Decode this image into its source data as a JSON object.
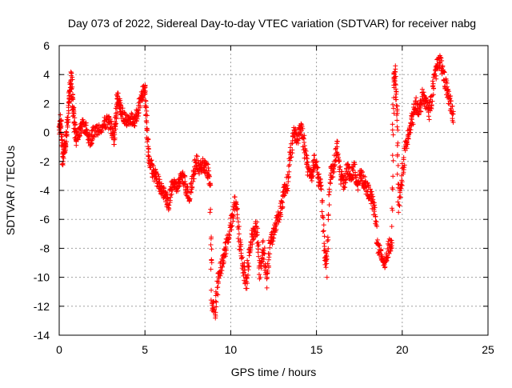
{
  "chart_data": {
    "type": "scatter",
    "title": "Day 073 of 2022, Sidereal Day-to-day VTEC variation (SDTVAR) for receiver nabg",
    "xlabel": "GPS time / hours",
    "ylabel": "SDTVAR / TECUs",
    "xlim": [
      0,
      25
    ],
    "ylim": [
      -14,
      6
    ],
    "xticks": [
      0,
      5,
      10,
      15,
      20,
      25
    ],
    "yticks": [
      -14,
      -12,
      -10,
      -8,
      -6,
      -4,
      -2,
      0,
      2,
      4,
      6
    ],
    "grid": true,
    "marker": "+",
    "color": "#ff0000",
    "series": [
      {
        "name": "SDTVAR",
        "trend": [
          [
            0.0,
            0.0
          ],
          [
            0.1,
            1.0
          ],
          [
            0.2,
            -1.8
          ],
          [
            0.3,
            -1.0
          ],
          [
            0.4,
            -0.5
          ],
          [
            0.5,
            1.0
          ],
          [
            0.6,
            2.5
          ],
          [
            0.7,
            3.8
          ],
          [
            0.8,
            2.0
          ],
          [
            0.9,
            0.5
          ],
          [
            1.0,
            -0.5
          ],
          [
            1.2,
            0.0
          ],
          [
            1.4,
            0.5
          ],
          [
            1.6,
            0.2
          ],
          [
            1.8,
            -0.5
          ],
          [
            2.0,
            0.0
          ],
          [
            2.3,
            0.3
          ],
          [
            2.6,
            0.5
          ],
          [
            2.8,
            0.8
          ],
          [
            3.0,
            0.5
          ],
          [
            3.2,
            -0.5
          ],
          [
            3.3,
            1.0
          ],
          [
            3.4,
            2.5
          ],
          [
            3.5,
            2.2
          ],
          [
            3.6,
            1.5
          ],
          [
            3.8,
            1.0
          ],
          [
            4.0,
            0.8
          ],
          [
            4.2,
            1.0
          ],
          [
            4.4,
            0.5
          ],
          [
            4.6,
            1.5
          ],
          [
            4.8,
            2.5
          ],
          [
            5.0,
            3.0
          ],
          [
            5.1,
            1.0
          ],
          [
            5.2,
            -1.5
          ],
          [
            5.4,
            -2.5
          ],
          [
            5.6,
            -3.0
          ],
          [
            5.8,
            -3.5
          ],
          [
            6.0,
            -4.0
          ],
          [
            6.2,
            -4.5
          ],
          [
            6.4,
            -5.0
          ],
          [
            6.6,
            -3.5
          ],
          [
            6.8,
            -3.8
          ],
          [
            7.0,
            -3.5
          ],
          [
            7.2,
            -3.0
          ],
          [
            7.4,
            -3.8
          ],
          [
            7.6,
            -4.5
          ],
          [
            7.8,
            -3.0
          ],
          [
            8.0,
            -2.0
          ],
          [
            8.2,
            -2.5
          ],
          [
            8.4,
            -2.2
          ],
          [
            8.6,
            -2.5
          ],
          [
            8.8,
            -3.5
          ],
          [
            8.9,
            -12.0
          ],
          [
            9.1,
            -12.2
          ],
          [
            9.3,
            -10.0
          ],
          [
            9.5,
            -9.0
          ],
          [
            9.7,
            -8.0
          ],
          [
            9.9,
            -7.0
          ],
          [
            10.1,
            -6.0
          ],
          [
            10.3,
            -4.5
          ],
          [
            10.5,
            -7.5
          ],
          [
            10.7,
            -9.0
          ],
          [
            10.9,
            -10.5
          ],
          [
            11.1,
            -8.0
          ],
          [
            11.3,
            -7.0
          ],
          [
            11.5,
            -6.5
          ],
          [
            11.7,
            -9.5
          ],
          [
            11.9,
            -8.0
          ],
          [
            12.1,
            -10.0
          ],
          [
            12.3,
            -7.5
          ],
          [
            12.5,
            -7.0
          ],
          [
            12.7,
            -6.0
          ],
          [
            12.9,
            -5.5
          ],
          [
            13.1,
            -4.0
          ],
          [
            13.3,
            -3.5
          ],
          [
            13.5,
            -1.5
          ],
          [
            13.7,
            0.0
          ],
          [
            13.9,
            -0.5
          ],
          [
            14.1,
            0.5
          ],
          [
            14.3,
            -1.0
          ],
          [
            14.5,
            -2.5
          ],
          [
            14.7,
            -3.0
          ],
          [
            14.9,
            -2.0
          ],
          [
            15.1,
            -3.0
          ],
          [
            15.3,
            -4.0
          ],
          [
            15.5,
            -8.5
          ],
          [
            15.6,
            -9.0
          ],
          [
            15.8,
            -3.0
          ],
          [
            16.0,
            -2.5
          ],
          [
            16.2,
            -1.0
          ],
          [
            16.4,
            -3.0
          ],
          [
            16.6,
            -3.5
          ],
          [
            16.8,
            -2.5
          ],
          [
            17.0,
            -3.0
          ],
          [
            17.2,
            -2.5
          ],
          [
            17.4,
            -3.5
          ],
          [
            17.6,
            -3.0
          ],
          [
            17.8,
            -3.5
          ],
          [
            18.0,
            -4.0
          ],
          [
            18.2,
            -4.5
          ],
          [
            18.4,
            -5.5
          ],
          [
            18.6,
            -8.0
          ],
          [
            18.8,
            -8.5
          ],
          [
            19.0,
            -9.0
          ],
          [
            19.2,
            -8.0
          ],
          [
            19.4,
            -7.5
          ],
          [
            19.5,
            3.5
          ],
          [
            19.6,
            4.0
          ],
          [
            19.7,
            1.0
          ],
          [
            19.8,
            -5.0
          ],
          [
            20.0,
            -3.0
          ],
          [
            20.2,
            -1.0
          ],
          [
            20.4,
            0.0
          ],
          [
            20.6,
            1.0
          ],
          [
            20.8,
            2.0
          ],
          [
            21.0,
            1.5
          ],
          [
            21.2,
            2.5
          ],
          [
            21.4,
            2.0
          ],
          [
            21.6,
            1.5
          ],
          [
            21.8,
            3.0
          ],
          [
            22.0,
            4.5
          ],
          [
            22.2,
            5.0
          ],
          [
            22.4,
            4.0
          ],
          [
            22.6,
            3.0
          ],
          [
            22.8,
            2.0
          ],
          [
            23.0,
            1.0
          ]
        ]
      }
    ]
  }
}
